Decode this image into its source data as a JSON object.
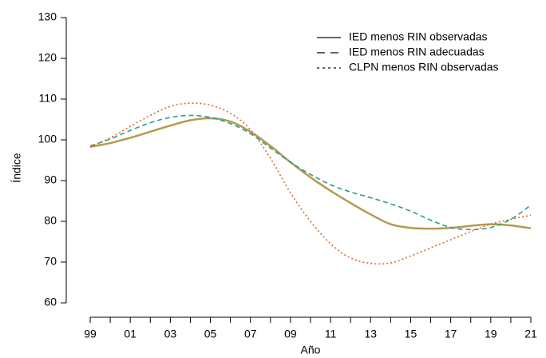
{
  "chart_data": {
    "type": "line",
    "x_label": "Año",
    "y_label": "Índice",
    "categories": [
      "99",
      null,
      "01",
      null,
      "03",
      null,
      "05",
      null,
      "07",
      null,
      "09",
      null,
      "11",
      null,
      "13",
      null,
      "15",
      null,
      "17",
      null,
      "19",
      null,
      "21"
    ],
    "series": [
      {
        "name": "IED menos RIN observadas",
        "color": "#b59a4e",
        "dash": "solid",
        "values": [
          98.3,
          99.2,
          100.5,
          102,
          103.5,
          104.8,
          105.3,
          104.5,
          102,
          98.5,
          94.5,
          90.8,
          87.5,
          84.5,
          81.7,
          79.3,
          78.4,
          78.2,
          78.4,
          78.9,
          79.3,
          79.0,
          78.3
        ]
      },
      {
        "name": "IED menos RIN adecuadas",
        "color": "#2a9d8f",
        "dash": "dashed",
        "values": [
          98.5,
          100.2,
          102.3,
          104.2,
          105.5,
          106,
          105.5,
          104,
          101.5,
          98,
          94.5,
          91.5,
          89,
          87.2,
          85.8,
          84.3,
          82.5,
          80.3,
          78.5,
          78,
          78.5,
          80.5,
          84
        ]
      },
      {
        "name": "CLPN menos RIN observadas",
        "color": "#e0662e",
        "dash": "dotted",
        "values": [
          98.3,
          100.5,
          103.3,
          106,
          108.2,
          109,
          108.5,
          106.5,
          102.5,
          95.5,
          87,
          80,
          74.5,
          71,
          69.7,
          69.8,
          71.5,
          73.5,
          75.5,
          77.5,
          79.3,
          80.5,
          81.5
        ]
      }
    ],
    "ylim": [
      58,
      133
    ],
    "yticks": [
      60,
      70,
      80,
      90,
      100,
      110,
      120,
      130
    ],
    "legend_position": "top-right",
    "legend_line_color": "#333333"
  }
}
